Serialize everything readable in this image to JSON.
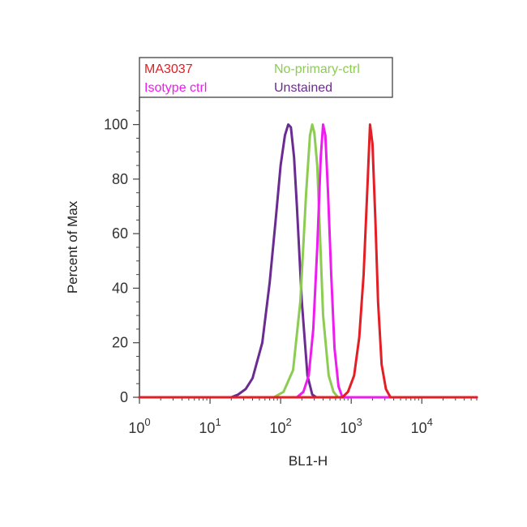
{
  "chart_data": {
    "type": "line",
    "title": "",
    "xlabel": "BL1-H",
    "ylabel": "Percent of Max",
    "x_scale": "log",
    "xlim": [
      1,
      60000
    ],
    "ylim": [
      0,
      110
    ],
    "grid": false,
    "legend_position": "top",
    "x_ticks": [
      {
        "value": 1,
        "base": "10",
        "exp": "0"
      },
      {
        "value": 10,
        "base": "10",
        "exp": "1"
      },
      {
        "value": 100,
        "base": "10",
        "exp": "2"
      },
      {
        "value": 1000,
        "base": "10",
        "exp": "3"
      },
      {
        "value": 10000,
        "base": "10",
        "exp": "4"
      }
    ],
    "y_ticks": [
      {
        "value": 0,
        "label": "0"
      },
      {
        "value": 20,
        "label": "20"
      },
      {
        "value": 40,
        "label": "40"
      },
      {
        "value": 60,
        "label": "60"
      },
      {
        "value": 80,
        "label": "80"
      },
      {
        "value": 100,
        "label": "100"
      }
    ],
    "series": [
      {
        "name": "Unstained",
        "color": "#6a2c91",
        "x": [
          1,
          20,
          25,
          32,
          40,
          55,
          70,
          85,
          100,
          115,
          128,
          140,
          155,
          170,
          200,
          240,
          280,
          320,
          60000
        ],
        "y": [
          0,
          0,
          1,
          3,
          7,
          20,
          42,
          65,
          85,
          96,
          100,
          99,
          88,
          70,
          35,
          8,
          1,
          0,
          0
        ]
      },
      {
        "name": "No-primary-ctrl",
        "color": "#8ccc52",
        "x": [
          1,
          80,
          110,
          150,
          190,
          230,
          260,
          280,
          300,
          330,
          360,
          400,
          480,
          560,
          650,
          60000
        ],
        "y": [
          0,
          0,
          2,
          10,
          35,
          75,
          96,
          100,
          97,
          85,
          60,
          30,
          8,
          2,
          0,
          0
        ]
      },
      {
        "name": "Isotype ctrl",
        "color": "#ee1cee",
        "x": [
          1,
          170,
          210,
          250,
          290,
          330,
          370,
          400,
          430,
          470,
          520,
          580,
          660,
          750,
          60000
        ],
        "y": [
          0,
          0,
          2,
          8,
          25,
          55,
          88,
          100,
          96,
          75,
          45,
          18,
          4,
          0,
          0
        ]
      },
      {
        "name": "MA3037",
        "color": "#e31e24",
        "x": [
          1,
          750,
          900,
          1100,
          1300,
          1500,
          1700,
          1850,
          2000,
          2200,
          2400,
          2700,
          3100,
          3600,
          60000
        ],
        "y": [
          0,
          0,
          2,
          8,
          22,
          45,
          78,
          100,
          93,
          65,
          35,
          12,
          3,
          0,
          0
        ]
      }
    ]
  },
  "legend": {
    "entries": [
      {
        "label": "MA3037",
        "color": "#e31e24"
      },
      {
        "label": "No-primary-ctrl",
        "color": "#8ccc52"
      },
      {
        "label": "Isotype ctrl",
        "color": "#ee1cee"
      },
      {
        "label": "Unstained",
        "color": "#6a2c91"
      }
    ]
  },
  "colors": {
    "axis": "#444444",
    "legend_border": "#333333"
  }
}
